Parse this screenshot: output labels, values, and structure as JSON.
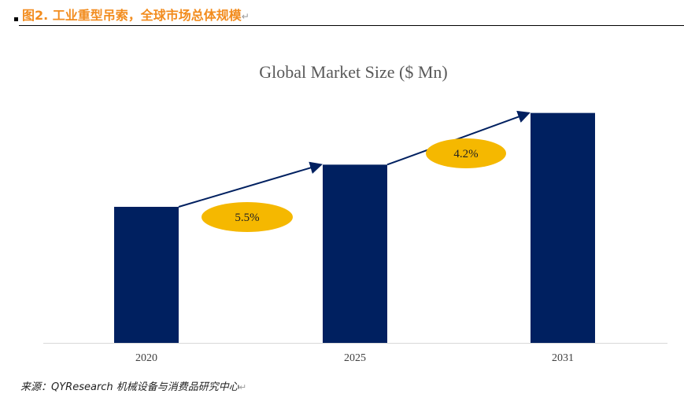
{
  "caption": "图2. 工业重型吊索，全球市场总体规模",
  "source": "来源：QYResearch 机械设备与消费品研究中心",
  "chart_data": {
    "type": "bar",
    "title": "Global Market Size ($ Mn)",
    "categories": [
      "2020",
      "2025",
      "2031"
    ],
    "values": [
      100,
      131,
      169
    ],
    "value_note": "relative index; no y-axis printed",
    "xlabel": "",
    "ylabel": "",
    "grid": false,
    "bar_color": "#002060",
    "annotations": [
      {
        "label": "5.5%",
        "from": "2020",
        "to": "2025",
        "color": "#F5B800"
      },
      {
        "label": "4.2%",
        "from": "2025",
        "to": "2031",
        "color": "#F5B800"
      }
    ]
  }
}
